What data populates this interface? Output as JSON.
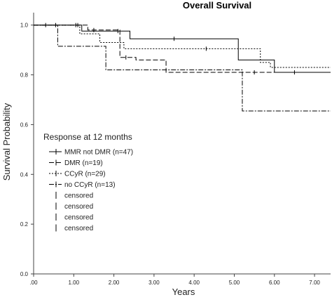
{
  "chart_data": {
    "type": "line",
    "title": "Overall Survival",
    "xlabel": "Years",
    "ylabel": "Survival Probability",
    "xlim": [
      0,
      7.4
    ],
    "ylim": [
      0,
      1.05
    ],
    "x_ticks": [
      0,
      1,
      2,
      3,
      4,
      5,
      6,
      7
    ],
    "x_tick_labels": [
      ".00",
      "1.00",
      "2.00",
      "3.00",
      "4.00",
      "5.00",
      "6.00",
      "7.00"
    ],
    "y_ticks": [
      0,
      0.2,
      0.4,
      0.6,
      0.8,
      1.0
    ],
    "y_tick_labels": [
      "0.0",
      "0.2",
      "0.4",
      "0.6",
      "0.8",
      "1.0"
    ],
    "grid": false,
    "legend": {
      "title": "Response at 12 months",
      "placement": "left-middle",
      "entries": [
        {
          "label": "MMR not DMR (n=47)",
          "dash": "solid"
        },
        {
          "label": "DMR (n=19)",
          "dash": "dashed"
        },
        {
          "label": "CCyR (n=29)",
          "dash": "dotted"
        },
        {
          "label": "no CCyR (n=13)",
          "dash": "dashdot"
        }
      ],
      "censored_labels": [
        "censored",
        "censored",
        "censored",
        "censored"
      ]
    },
    "series": [
      {
        "name": "MMR not DMR (n=47)",
        "dash": "solid",
        "step_x": [
          0,
          1.2,
          2.4,
          5.1,
          6.0,
          7.4
        ],
        "step_y": [
          1.0,
          0.976,
          0.945,
          0.86,
          0.81,
          0.81
        ],
        "censored_x": [
          2.1,
          3.5,
          6.5
        ]
      },
      {
        "name": "DMR (n=19)",
        "dash": "dashed",
        "step_x": [
          0,
          1.35,
          2.15,
          2.55,
          3.3,
          7.4
        ],
        "step_y": [
          1.0,
          0.98,
          0.87,
          0.86,
          0.81,
          0.81
        ],
        "censored_x": [
          1.1,
          1.5,
          2.3,
          5.5
        ]
      },
      {
        "name": "CCyR (n=29)",
        "dash": "dotted",
        "step_x": [
          0,
          1.15,
          1.65,
          2.25,
          5.65,
          5.9,
          7.4
        ],
        "step_y": [
          1.0,
          0.965,
          0.93,
          0.905,
          0.85,
          0.83,
          0.83
        ],
        "censored_x": [
          0.55,
          1.05,
          4.3
        ]
      },
      {
        "name": "no CCyR (n=13)",
        "dash": "dashdot",
        "step_x": [
          0,
          0.6,
          1.8,
          5.2,
          7.4
        ],
        "step_y": [
          1.0,
          0.915,
          0.82,
          0.655,
          0.655
        ],
        "censored_x": [
          0.3
        ]
      }
    ]
  }
}
